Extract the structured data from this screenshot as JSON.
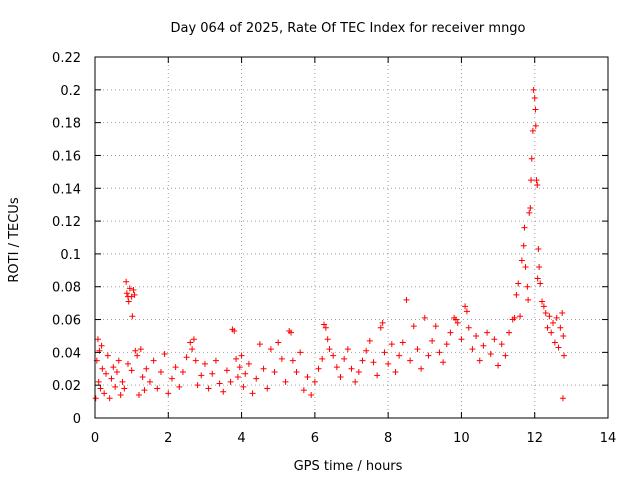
{
  "chart_data": {
    "type": "scatter",
    "title": "Day 064 of 2025, Rate Of TEC Index for receiver mngo",
    "xlabel": "GPS time / hours",
    "ylabel": "ROTI / TECUs",
    "xlim": [
      0,
      14
    ],
    "ylim": [
      0,
      0.22
    ],
    "grid": true,
    "marker": "+",
    "marker_color": "#ff0000",
    "x_ticks": [
      {
        "value": 0,
        "label": "0"
      },
      {
        "value": 2,
        "label": "2"
      },
      {
        "value": 4,
        "label": "4"
      },
      {
        "value": 6,
        "label": "6"
      },
      {
        "value": 8,
        "label": "8"
      },
      {
        "value": 10,
        "label": "10"
      },
      {
        "value": 12,
        "label": "12"
      },
      {
        "value": 14,
        "label": "14"
      }
    ],
    "y_ticks": [
      {
        "value": 0,
        "label": "0"
      },
      {
        "value": 0.02,
        "label": "0.02"
      },
      {
        "value": 0.04,
        "label": "0.04"
      },
      {
        "value": 0.06,
        "label": "0.06"
      },
      {
        "value": 0.08,
        "label": "0.08"
      },
      {
        "value": 0.1,
        "label": "0.1"
      },
      {
        "value": 0.12,
        "label": "0.12"
      },
      {
        "value": 0.14,
        "label": "0.14"
      },
      {
        "value": 0.16,
        "label": "0.16"
      },
      {
        "value": 0.18,
        "label": "0.18"
      },
      {
        "value": 0.2,
        "label": "0.2"
      },
      {
        "value": 0.22,
        "label": "0.22"
      }
    ],
    "series": [
      {
        "name": "ROTI",
        "points": [
          [
            0.02,
            0.012
          ],
          [
            0.05,
            0.035
          ],
          [
            0.08,
            0.048
          ],
          [
            0.1,
            0.022
          ],
          [
            0.12,
            0.041
          ],
          [
            0.15,
            0.018
          ],
          [
            0.18,
            0.044
          ],
          [
            0.2,
            0.03
          ],
          [
            0.25,
            0.015
          ],
          [
            0.3,
            0.027
          ],
          [
            0.35,
            0.038
          ],
          [
            0.4,
            0.012
          ],
          [
            0.45,
            0.024
          ],
          [
            0.5,
            0.031
          ],
          [
            0.55,
            0.019
          ],
          [
            0.6,
            0.028
          ],
          [
            0.65,
            0.035
          ],
          [
            0.7,
            0.014
          ],
          [
            0.75,
            0.022
          ],
          [
            0.8,
            0.018
          ],
          [
            0.85,
            0.083
          ],
          [
            0.87,
            0.076
          ],
          [
            0.9,
            0.074
          ],
          [
            0.92,
            0.071
          ],
          [
            0.95,
            0.079
          ],
          [
            1.0,
            0.074
          ],
          [
            1.02,
            0.062
          ],
          [
            1.05,
            0.078
          ],
          [
            1.08,
            0.075
          ],
          [
            1.1,
            0.041
          ],
          [
            0.9,
            0.033
          ],
          [
            1.0,
            0.029
          ],
          [
            1.15,
            0.038
          ],
          [
            1.2,
            0.014
          ],
          [
            1.25,
            0.042
          ],
          [
            1.3,
            0.025
          ],
          [
            1.35,
            0.017
          ],
          [
            1.4,
            0.03
          ],
          [
            1.5,
            0.022
          ],
          [
            1.6,
            0.035
          ],
          [
            1.7,
            0.018
          ],
          [
            1.8,
            0.028
          ],
          [
            1.9,
            0.039
          ],
          [
            2.0,
            0.015
          ],
          [
            2.1,
            0.024
          ],
          [
            2.2,
            0.031
          ],
          [
            2.3,
            0.019
          ],
          [
            2.4,
            0.028
          ],
          [
            2.5,
            0.037
          ],
          [
            2.6,
            0.046
          ],
          [
            2.65,
            0.042
          ],
          [
            2.7,
            0.048
          ],
          [
            2.75,
            0.035
          ],
          [
            2.8,
            0.02
          ],
          [
            2.9,
            0.026
          ],
          [
            3.0,
            0.033
          ],
          [
            3.1,
            0.018
          ],
          [
            3.2,
            0.027
          ],
          [
            3.3,
            0.035
          ],
          [
            3.4,
            0.021
          ],
          [
            3.5,
            0.016
          ],
          [
            3.6,
            0.029
          ],
          [
            3.7,
            0.022
          ],
          [
            3.75,
            0.054
          ],
          [
            3.8,
            0.053
          ],
          [
            3.85,
            0.036
          ],
          [
            3.9,
            0.025
          ],
          [
            3.95,
            0.031
          ],
          [
            4.0,
            0.038
          ],
          [
            4.05,
            0.019
          ],
          [
            4.1,
            0.027
          ],
          [
            4.2,
            0.033
          ],
          [
            4.3,
            0.015
          ],
          [
            4.4,
            0.024
          ],
          [
            4.5,
            0.045
          ],
          [
            4.6,
            0.03
          ],
          [
            4.7,
            0.018
          ],
          [
            4.8,
            0.042
          ],
          [
            4.9,
            0.028
          ],
          [
            5.0,
            0.046
          ],
          [
            5.1,
            0.036
          ],
          [
            5.2,
            0.022
          ],
          [
            5.3,
            0.053
          ],
          [
            5.35,
            0.052
          ],
          [
            5.4,
            0.035
          ],
          [
            5.5,
            0.028
          ],
          [
            5.6,
            0.04
          ],
          [
            5.7,
            0.017
          ],
          [
            5.8,
            0.025
          ],
          [
            5.9,
            0.014
          ],
          [
            6.0,
            0.022
          ],
          [
            6.1,
            0.03
          ],
          [
            6.2,
            0.036
          ],
          [
            6.25,
            0.057
          ],
          [
            6.3,
            0.055
          ],
          [
            6.35,
            0.048
          ],
          [
            6.4,
            0.042
          ],
          [
            6.5,
            0.038
          ],
          [
            6.6,
            0.031
          ],
          [
            6.7,
            0.025
          ],
          [
            6.8,
            0.036
          ],
          [
            6.9,
            0.042
          ],
          [
            7.0,
            0.03
          ],
          [
            7.1,
            0.022
          ],
          [
            7.2,
            0.028
          ],
          [
            7.3,
            0.035
          ],
          [
            7.4,
            0.041
          ],
          [
            7.5,
            0.047
          ],
          [
            7.6,
            0.034
          ],
          [
            7.7,
            0.026
          ],
          [
            7.8,
            0.055
          ],
          [
            7.85,
            0.058
          ],
          [
            7.9,
            0.04
          ],
          [
            8.0,
            0.033
          ],
          [
            8.1,
            0.045
          ],
          [
            8.2,
            0.028
          ],
          [
            8.3,
            0.038
          ],
          [
            8.4,
            0.046
          ],
          [
            8.5,
            0.072
          ],
          [
            8.6,
            0.035
          ],
          [
            8.7,
            0.056
          ],
          [
            8.8,
            0.042
          ],
          [
            8.9,
            0.03
          ],
          [
            9.0,
            0.061
          ],
          [
            9.1,
            0.038
          ],
          [
            9.2,
            0.047
          ],
          [
            9.3,
            0.056
          ],
          [
            9.4,
            0.04
          ],
          [
            9.5,
            0.034
          ],
          [
            9.6,
            0.045
          ],
          [
            9.7,
            0.052
          ],
          [
            9.8,
            0.061
          ],
          [
            9.85,
            0.06
          ],
          [
            9.9,
            0.058
          ],
          [
            10.0,
            0.048
          ],
          [
            10.1,
            0.068
          ],
          [
            10.15,
            0.065
          ],
          [
            10.2,
            0.055
          ],
          [
            10.3,
            0.042
          ],
          [
            10.4,
            0.05
          ],
          [
            10.5,
            0.035
          ],
          [
            10.6,
            0.044
          ],
          [
            10.7,
            0.052
          ],
          [
            10.8,
            0.039
          ],
          [
            10.9,
            0.048
          ],
          [
            11.0,
            0.032
          ],
          [
            11.1,
            0.045
          ],
          [
            11.2,
            0.038
          ],
          [
            11.3,
            0.052
          ],
          [
            11.4,
            0.06
          ],
          [
            11.45,
            0.061
          ],
          [
            11.5,
            0.075
          ],
          [
            11.55,
            0.082
          ],
          [
            11.6,
            0.062
          ],
          [
            11.65,
            0.096
          ],
          [
            11.7,
            0.105
          ],
          [
            11.72,
            0.116
          ],
          [
            11.75,
            0.092
          ],
          [
            11.8,
            0.08
          ],
          [
            11.82,
            0.072
          ],
          [
            11.85,
            0.125
          ],
          [
            11.88,
            0.128
          ],
          [
            11.9,
            0.145
          ],
          [
            11.92,
            0.158
          ],
          [
            11.95,
            0.175
          ],
          [
            11.97,
            0.2
          ],
          [
            12.0,
            0.195
          ],
          [
            12.02,
            0.188
          ],
          [
            12.03,
            0.178
          ],
          [
            12.05,
            0.145
          ],
          [
            12.07,
            0.142
          ],
          [
            12.08,
            0.085
          ],
          [
            12.1,
            0.103
          ],
          [
            12.12,
            0.092
          ],
          [
            12.15,
            0.082
          ],
          [
            12.2,
            0.071
          ],
          [
            12.25,
            0.068
          ],
          [
            12.3,
            0.064
          ],
          [
            12.35,
            0.055
          ],
          [
            12.4,
            0.062
          ],
          [
            12.45,
            0.052
          ],
          [
            12.5,
            0.058
          ],
          [
            12.55,
            0.046
          ],
          [
            12.6,
            0.061
          ],
          [
            12.65,
            0.043
          ],
          [
            12.7,
            0.055
          ],
          [
            12.75,
            0.064
          ],
          [
            12.78,
            0.05
          ],
          [
            12.8,
            0.038
          ],
          [
            12.77,
            0.012
          ]
        ]
      }
    ]
  }
}
